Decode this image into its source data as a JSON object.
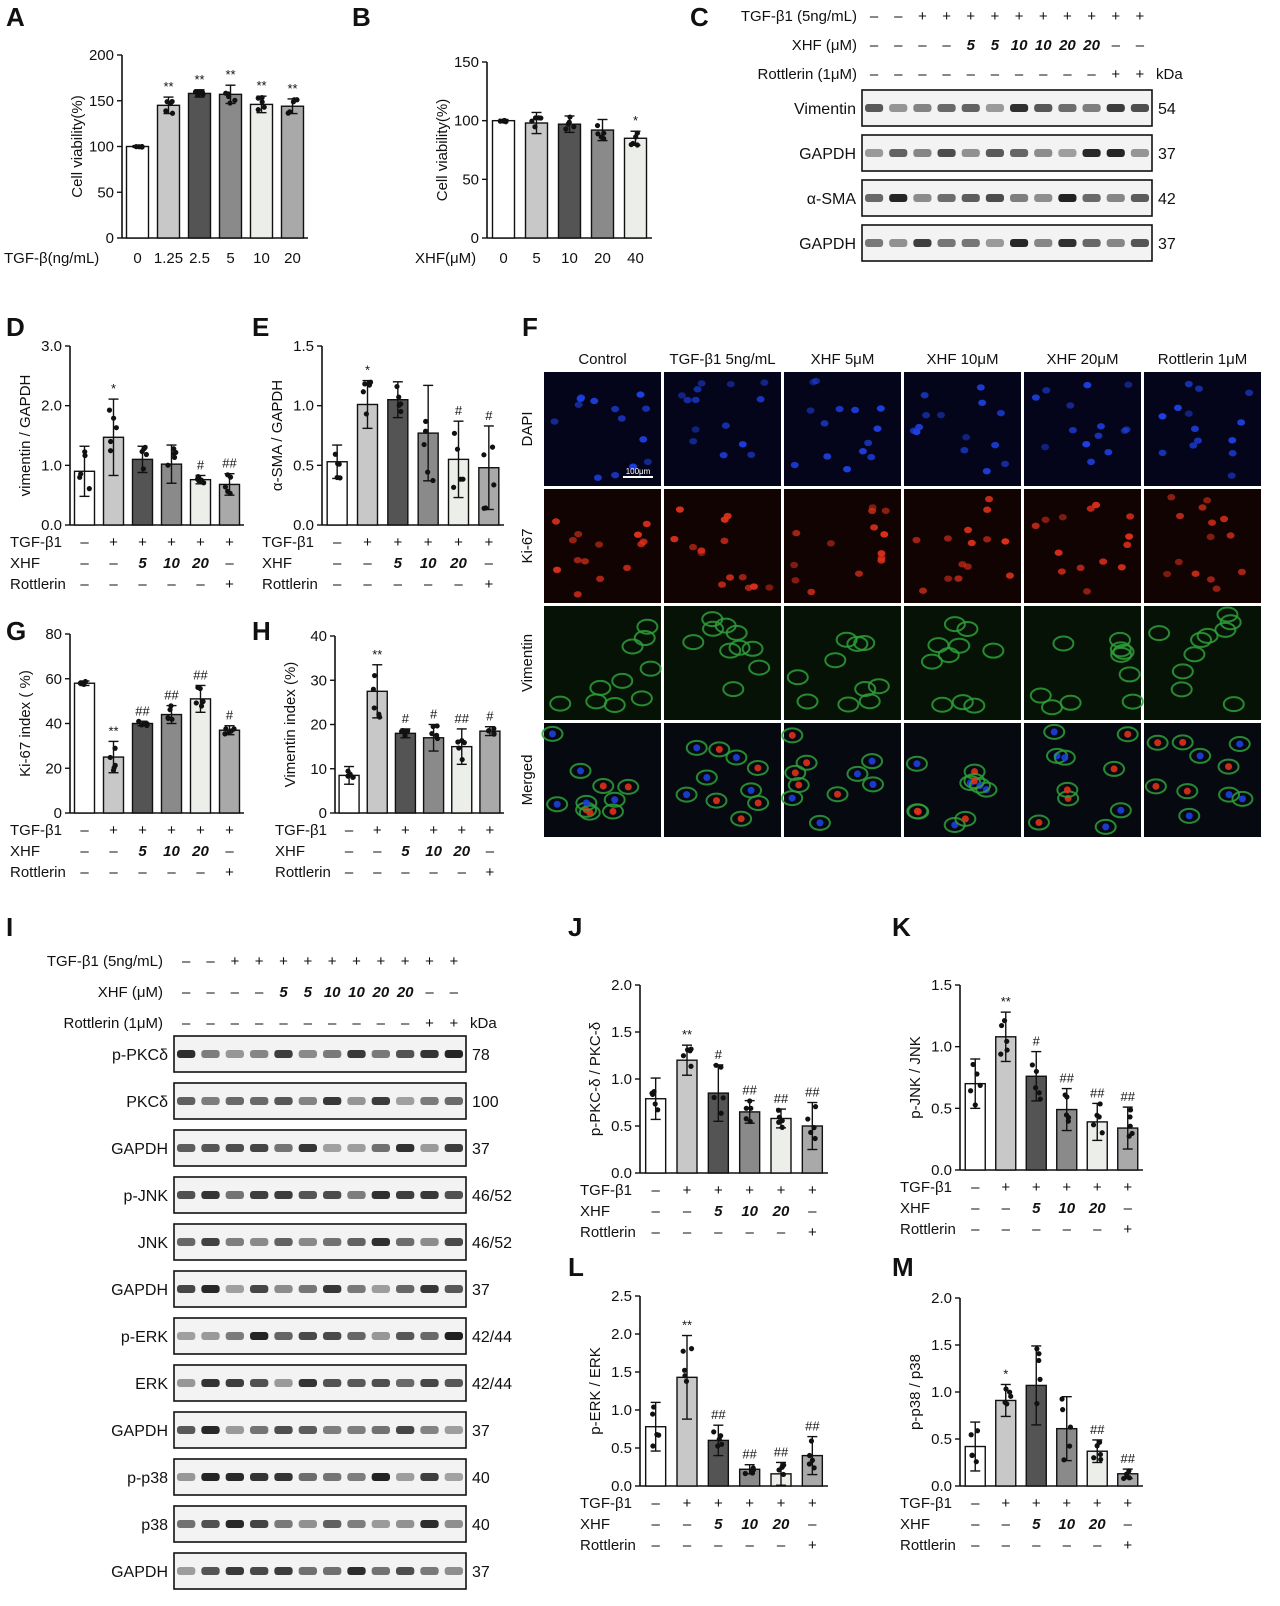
{
  "panel_letters": [
    "A",
    "B",
    "C",
    "D",
    "E",
    "F",
    "G",
    "H",
    "I",
    "J",
    "K",
    "L",
    "M"
  ],
  "colors": {
    "bar_white": "#ffffff",
    "bar_light_gray": "#c8c8c8",
    "bar_dark_gray": "#545454",
    "bar_mid_gray": "#8a8a8a",
    "bar_off_white": "#eceeea",
    "bar_gray": "#a9a9a9",
    "dapi_blue": "#1e3fe0",
    "ki67_red": "#e0301c",
    "vimentin_green": "#2ea03a"
  },
  "blots_C": {
    "rows": [
      {
        "label": "TGF-β1 (5ng/mL)",
        "values": [
          "–",
          "–",
          "+",
          "+",
          "+",
          "+",
          "+",
          "+",
          "+",
          "+",
          "+",
          "+"
        ]
      },
      {
        "label": "XHF (μM)",
        "values": [
          "–",
          "–",
          "–",
          "–",
          "5",
          "5",
          "10",
          "10",
          "20",
          "20",
          "–",
          "–"
        ]
      },
      {
        "label": "Rottlerin (1μM)",
        "values": [
          "–",
          "–",
          "–",
          "–",
          "–",
          "–",
          "–",
          "–",
          "–",
          "–",
          "+",
          "+"
        ]
      }
    ],
    "kda_label": "kDa",
    "bands": [
      {
        "name": "Vimentin",
        "kda": "54"
      },
      {
        "name": "GAPDH",
        "kda": "37"
      },
      {
        "name": "α-SMA",
        "kda": "42"
      },
      {
        "name": "GAPDH",
        "kda": "37"
      }
    ]
  },
  "blots_I": {
    "rows": [
      {
        "label": "TGF-β1 (5ng/mL)",
        "values": [
          "–",
          "–",
          "+",
          "+",
          "+",
          "+",
          "+",
          "+",
          "+",
          "+",
          "+",
          "+"
        ]
      },
      {
        "label": "XHF (μM)",
        "values": [
          "–",
          "–",
          "–",
          "–",
          "5",
          "5",
          "10",
          "10",
          "20",
          "20",
          "–",
          "–"
        ]
      },
      {
        "label": "Rottlerin (1μM)",
        "values": [
          "–",
          "–",
          "–",
          "–",
          "–",
          "–",
          "–",
          "–",
          "–",
          "–",
          "+",
          "+"
        ]
      }
    ],
    "kda_label": "kDa",
    "bands": [
      {
        "name": "p-PKCδ",
        "kda": "78"
      },
      {
        "name": "PKCδ",
        "kda": "100"
      },
      {
        "name": "GAPDH",
        "kda": "37"
      },
      {
        "name": "p-JNK",
        "kda": "46/52"
      },
      {
        "name": "JNK",
        "kda": "46/52"
      },
      {
        "name": "GAPDH",
        "kda": "37"
      },
      {
        "name": "p-ERK",
        "kda": "42/44"
      },
      {
        "name": "ERK",
        "kda": "42/44"
      },
      {
        "name": "GAPDH",
        "kda": "37"
      },
      {
        "name": "p-p38",
        "kda": "40"
      },
      {
        "name": "p38",
        "kda": "40"
      },
      {
        "name": "GAPDH",
        "kda": "37"
      }
    ]
  },
  "micrographs_F": {
    "columns": [
      "Control",
      "TGF-β1 5ng/mL",
      "XHF 5μM",
      "XHF 10μM",
      "XHF 20μM",
      "Rottlerin 1μM"
    ],
    "rows": [
      "DAPI",
      "Ki-67",
      "Vimentin",
      "Merged"
    ],
    "scale_bar": "100μm"
  },
  "treatment_table": {
    "rows": [
      {
        "label": "TGF-β1",
        "values": [
          "–",
          "+",
          "+",
          "+",
          "+",
          "+"
        ]
      },
      {
        "label": "XHF",
        "values": [
          "–",
          "–",
          "5",
          "10",
          "20",
          "–"
        ]
      },
      {
        "label": "Rottlerin",
        "values": [
          "–",
          "–",
          "–",
          "–",
          "–",
          "+"
        ]
      }
    ]
  },
  "chart_data": [
    {
      "id": "A",
      "type": "bar",
      "ylabel": "Cell viability(%)",
      "xlabel": "TGF-β(ng/mL)",
      "categories": [
        "0",
        "1.25",
        "2.5",
        "5",
        "10",
        "20"
      ],
      "values": [
        100,
        145,
        158,
        157,
        146,
        144
      ],
      "errors": [
        1,
        9,
        4,
        10,
        9,
        8
      ],
      "significance": [
        "",
        "**",
        "**",
        "**",
        "**",
        "**"
      ],
      "ylim": [
        0,
        200
      ],
      "yticks": [
        0,
        50,
        100,
        150,
        200
      ]
    },
    {
      "id": "B",
      "type": "bar",
      "ylabel": "Cell viability(%)",
      "xlabel": "XHF(μM)",
      "categories": [
        "0",
        "5",
        "10",
        "20",
        "40"
      ],
      "values": [
        100,
        98,
        97,
        92,
        85
      ],
      "errors": [
        1,
        9,
        7,
        9,
        6
      ],
      "significance": [
        "",
        "",
        "",
        "",
        "*"
      ],
      "ylim": [
        0,
        150
      ],
      "yticks": [
        0,
        50,
        100,
        150
      ]
    },
    {
      "id": "D",
      "type": "bar",
      "ylabel": "vimentin / GAPDH",
      "values": [
        0.9,
        1.47,
        1.1,
        1.02,
        0.76,
        0.68
      ],
      "errors": [
        0.42,
        0.64,
        0.22,
        0.32,
        0.07,
        0.18
      ],
      "significance": [
        "",
        "*",
        "",
        "",
        "#",
        "##"
      ],
      "ylim": [
        0,
        3
      ],
      "yticks": [
        "0.0",
        "1.0",
        "2.0",
        "3.0"
      ]
    },
    {
      "id": "E",
      "type": "bar",
      "ylabel": "α-SMA / GAPDH",
      "values": [
        0.53,
        1.01,
        1.05,
        0.77,
        0.55,
        0.48
      ],
      "errors": [
        0.14,
        0.2,
        0.15,
        0.4,
        0.32,
        0.35
      ],
      "significance": [
        "",
        "*",
        "",
        "",
        "#",
        "#"
      ],
      "ylim": [
        0,
        1.5
      ],
      "yticks": [
        "0.0",
        "0.5",
        "1.0",
        "1.5"
      ]
    },
    {
      "id": "G",
      "type": "bar",
      "ylabel": "Ki-67 index ( %)",
      "values": [
        58,
        25,
        40,
        44,
        51,
        37
      ],
      "errors": [
        1,
        7,
        1,
        4,
        6,
        2
      ],
      "significance": [
        "",
        "**",
        "##",
        "##",
        "##",
        "#"
      ],
      "ylim": [
        0,
        80
      ],
      "yticks": [
        0,
        20,
        40,
        60,
        80
      ]
    },
    {
      "id": "H",
      "type": "bar",
      "ylabel": "Vimentin index  (%)",
      "values": [
        8.5,
        27.5,
        18,
        17,
        15,
        18.5
      ],
      "errors": [
        2,
        6,
        1,
        3,
        4,
        1
      ],
      "significance": [
        "",
        "**",
        "#",
        "#",
        "##",
        "#"
      ],
      "ylim": [
        0,
        40
      ],
      "yticks": [
        0,
        10,
        20,
        30,
        40
      ]
    },
    {
      "id": "J",
      "type": "bar",
      "ylabel": "p-PKC-δ / PKC-δ",
      "values": [
        0.79,
        1.2,
        0.85,
        0.65,
        0.58,
        0.5
      ],
      "errors": [
        0.22,
        0.16,
        0.3,
        0.12,
        0.1,
        0.25
      ],
      "significance": [
        "",
        "**",
        "#",
        "##",
        "##",
        "##"
      ],
      "ylim": [
        0,
        2
      ],
      "yticks": [
        "0.0",
        "0.5",
        "1.0",
        "1.5",
        "2.0"
      ]
    },
    {
      "id": "K",
      "type": "bar",
      "ylabel": "p-JNK / JNK",
      "values": [
        0.7,
        1.08,
        0.76,
        0.49,
        0.39,
        0.34
      ],
      "errors": [
        0.2,
        0.2,
        0.2,
        0.17,
        0.15,
        0.17
      ],
      "significance": [
        "",
        "**",
        "#",
        "##",
        "##",
        "##"
      ],
      "ylim": [
        0,
        1.5
      ],
      "yticks": [
        "0.0",
        "0.5",
        "1.0",
        "1.5"
      ]
    },
    {
      "id": "L",
      "type": "bar",
      "ylabel": "p-ERK / ERK",
      "values": [
        0.78,
        1.43,
        0.6,
        0.22,
        0.16,
        0.4
      ],
      "errors": [
        0.32,
        0.55,
        0.2,
        0.06,
        0.15,
        0.25
      ],
      "significance": [
        "",
        "**",
        "##",
        "##",
        "##",
        "##"
      ],
      "ylim": [
        0,
        2.5
      ],
      "yticks": [
        "0.0",
        "0.5",
        "1.0",
        "1.5",
        "2.0",
        "2.5"
      ]
    },
    {
      "id": "M",
      "type": "bar",
      "ylabel": "p-p38 / p38",
      "values": [
        0.42,
        0.91,
        1.07,
        0.61,
        0.37,
        0.13
      ],
      "errors": [
        0.26,
        0.17,
        0.42,
        0.34,
        0.12,
        0.05
      ],
      "significance": [
        "",
        "*",
        "",
        "",
        "##",
        "##"
      ],
      "ylim": [
        0,
        2
      ],
      "yticks": [
        "0.0",
        "0.5",
        "1.0",
        "1.5",
        "2.0"
      ]
    }
  ]
}
